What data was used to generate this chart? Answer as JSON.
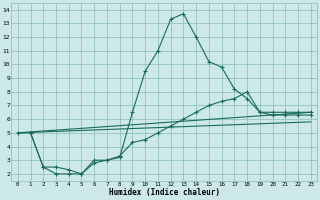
{
  "xlabel": "Humidex (Indice chaleur)",
  "background_color": "#cce8e8",
  "grid_color": "#88bbbb",
  "line_color": "#1a6b5a",
  "xlim": [
    -0.5,
    23.5
  ],
  "ylim": [
    1.5,
    14.5
  ],
  "xticks": [
    0,
    1,
    2,
    3,
    4,
    5,
    6,
    7,
    8,
    9,
    10,
    11,
    12,
    13,
    14,
    15,
    16,
    17,
    18,
    19,
    20,
    21,
    22,
    23
  ],
  "yticks": [
    2,
    3,
    4,
    5,
    6,
    7,
    8,
    9,
    10,
    11,
    12,
    13,
    14
  ],
  "line1_x": [
    0,
    1,
    2,
    3,
    4,
    5,
    6,
    7,
    8,
    9,
    10,
    11,
    12,
    13,
    14,
    15,
    16,
    17,
    18,
    19,
    20,
    21,
    22,
    23
  ],
  "line1_y": [
    5.0,
    5.0,
    2.5,
    2.0,
    2.0,
    2.0,
    3.0,
    3.0,
    3.2,
    6.5,
    9.5,
    11.0,
    13.3,
    13.7,
    12.0,
    10.2,
    9.8,
    8.2,
    7.5,
    6.5,
    6.3,
    6.3,
    6.3,
    6.3
  ],
  "line2_x": [
    1,
    2,
    3,
    4,
    5,
    6,
    7,
    8,
    9,
    10,
    11,
    12,
    13,
    14,
    15,
    16,
    17,
    18,
    19,
    20,
    21,
    22,
    23
  ],
  "line2_y": [
    5.0,
    2.5,
    2.5,
    2.3,
    2.0,
    2.8,
    3.0,
    3.3,
    4.3,
    4.5,
    5.0,
    5.5,
    6.0,
    6.5,
    7.0,
    7.3,
    7.5,
    8.0,
    6.5,
    6.5,
    6.5,
    6.5,
    6.5
  ],
  "line3_x": [
    0,
    23
  ],
  "line3_y": [
    5.0,
    6.5
  ],
  "line4_x": [
    0,
    23
  ],
  "line4_y": [
    5.0,
    5.8
  ]
}
